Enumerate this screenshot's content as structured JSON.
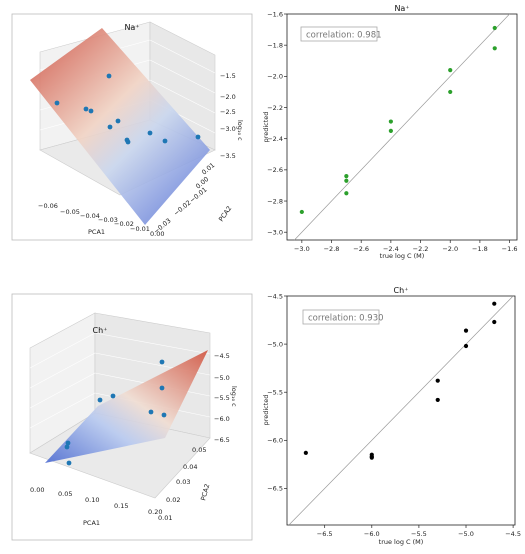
{
  "chart_data": [
    {
      "id": "na-3d",
      "type": "scatter",
      "title": "Na$^+$",
      "title_display": "Na⁺",
      "xlabel": "PCA1",
      "ylabel": "PCA2",
      "zlabel": "log₁₀ c",
      "x_ticks": [
        "-0.06",
        "-0.05",
        "-0.04",
        "-0.03",
        "-0.02",
        "-0.01",
        "0.00"
      ],
      "y_ticks": [
        "-0.03",
        "-0.02",
        "-0.01",
        "0.00",
        "0.01"
      ],
      "z_ticks": [
        "-1.5",
        "-2.0",
        "-2.5",
        "-3.0",
        "-3.5"
      ],
      "surface": "fitted plane (coolwarm colormap)",
      "marker_color": "#1f77b4"
    },
    {
      "id": "na-parity",
      "type": "scatter",
      "title": "Na$^+$",
      "title_display": "Na⁺",
      "xlabel": "true log C (M)",
      "ylabel": "predicted",
      "annotation": "correlation: 0.981",
      "xlim": [
        -3.1,
        -1.55
      ],
      "ylim": [
        -3.05,
        -1.6
      ],
      "x_ticks": [
        -3.0,
        -2.8,
        -2.6,
        -2.4,
        -2.2,
        -2.0,
        -1.8,
        -1.6
      ],
      "y_ticks": [
        -3.0,
        -2.8,
        -2.6,
        -2.4,
        -2.2,
        -2.0,
        -1.8,
        -1.6
      ],
      "points": [
        [
          -3.0,
          -2.87
        ],
        [
          -2.7,
          -2.64
        ],
        [
          -2.7,
          -2.67
        ],
        [
          -2.7,
          -2.75
        ],
        [
          -2.4,
          -2.29
        ],
        [
          -2.4,
          -2.35
        ],
        [
          -2.0,
          -1.96
        ],
        [
          -2.0,
          -2.1
        ],
        [
          -1.7,
          -1.69
        ],
        [
          -1.7,
          -1.82
        ]
      ],
      "marker_color": "#2ca02c",
      "grid": false
    },
    {
      "id": "ch-3d",
      "type": "scatter",
      "title": "Ch$^+$",
      "title_display": "Ch⁺",
      "xlabel": "PCA1",
      "ylabel": "PCA2",
      "zlabel": "log₁₀ c",
      "x_ticks": [
        "0.00",
        "0.05",
        "0.10",
        "0.15",
        "0.20"
      ],
      "y_ticks": [
        "0.01",
        "0.02",
        "0.03",
        "0.04",
        "0.05"
      ],
      "z_ticks": [
        "-4.5",
        "-5.0",
        "-5.5",
        "-6.0",
        "-6.5"
      ],
      "surface": "fitted plane (coolwarm colormap)",
      "marker_color": "#1f77b4"
    },
    {
      "id": "ch-parity",
      "type": "scatter",
      "title": "Ch$^+$",
      "title_display": "Ch⁺",
      "xlabel": "true log C (M)",
      "ylabel": "predicted",
      "annotation": "correlation: 0.930",
      "xlim": [
        -6.9,
        -4.48
      ],
      "ylim": [
        -6.88,
        -4.5
      ],
      "x_ticks": [
        -6.5,
        -6.0,
        -5.5,
        -5.0,
        -4.5
      ],
      "y_ticks": [
        -6.5,
        -6.0,
        -5.5,
        -5.0,
        -4.5
      ],
      "points": [
        [
          -6.7,
          -6.13
        ],
        [
          -6.0,
          -6.15
        ],
        [
          -6.0,
          -6.17
        ],
        [
          -6.0,
          -6.18
        ],
        [
          -5.3,
          -5.38
        ],
        [
          -5.3,
          -5.58
        ],
        [
          -5.0,
          -4.86
        ],
        [
          -5.0,
          -5.02
        ],
        [
          -4.7,
          -4.58
        ],
        [
          -4.7,
          -4.77
        ]
      ],
      "marker_color": "#000000",
      "grid": false
    }
  ]
}
